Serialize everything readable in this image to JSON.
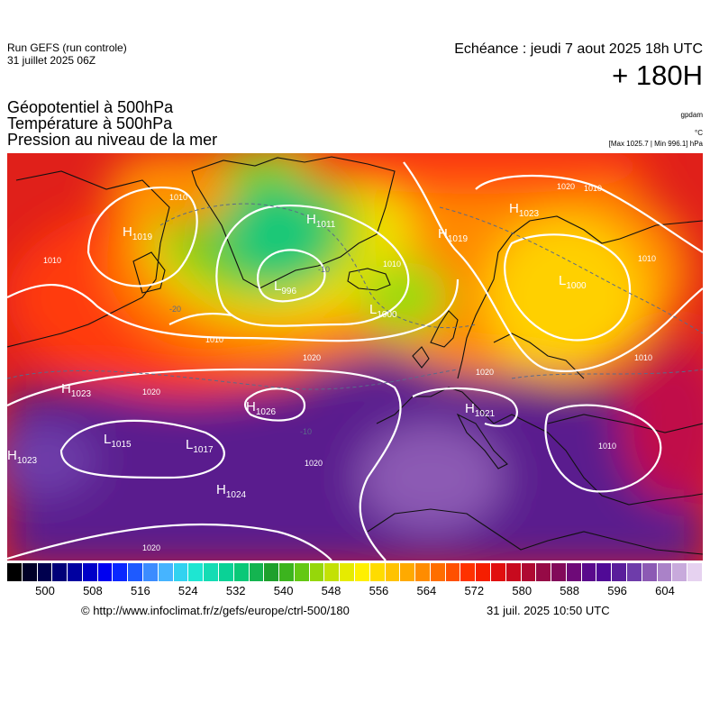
{
  "header": {
    "run_line1": "Run GEFS (run controle)",
    "run_line2": "31 juillet 2025 06Z",
    "valid_time": "Echéance : jeudi 7 aout 2025 18h UTC",
    "lead_time": "+ 180H"
  },
  "fields": {
    "line1": "Géopotentiel à 500hPa",
    "line2": "Température à 500hPa",
    "line3": "Pression au niveau de la mer"
  },
  "units": {
    "geopotential": "gpdam",
    "temperature": "°C",
    "pressure_range": "[Max 1025.7 | Min 996.1] hPa"
  },
  "map": {
    "pressure_centers": [
      {
        "type": "H",
        "value": "1019"
      },
      {
        "type": "H",
        "value": "1011"
      },
      {
        "type": "H",
        "value": "1023"
      },
      {
        "type": "H",
        "value": "1019"
      },
      {
        "type": "L",
        "value": "996"
      },
      {
        "type": "L",
        "value": "1000"
      },
      {
        "type": "L",
        "value": "1000"
      },
      {
        "type": "H",
        "value": "1023"
      },
      {
        "type": "H",
        "value": "1026"
      },
      {
        "type": "H",
        "value": "1021"
      },
      {
        "type": "L",
        "value": "1015"
      },
      {
        "type": "L",
        "value": "1017"
      },
      {
        "type": "H",
        "value": "1023"
      },
      {
        "type": "H",
        "value": "1024"
      }
    ],
    "isobar_labels": [
      "1010",
      "1010",
      "1010",
      "1010",
      "1010",
      "1010",
      "1020",
      "1020",
      "1020",
      "1020",
      "1020",
      "1010",
      "1010",
      "1020"
    ],
    "temp_labels": [
      "-20",
      "-10",
      "-10"
    ]
  },
  "colorscale": {
    "ticks": [
      "500",
      "508",
      "516",
      "524",
      "532",
      "540",
      "548",
      "556",
      "564",
      "572",
      "580",
      "588",
      "596",
      "604"
    ],
    "colors": [
      "#000000",
      "#000028",
      "#00004e",
      "#000078",
      "#0000a0",
      "#0000c8",
      "#0000f0",
      "#0a28ff",
      "#1e5aff",
      "#3c8cff",
      "#46b4ff",
      "#32d2f0",
      "#1ee6d2",
      "#14dcb4",
      "#0ad296",
      "#0ac878",
      "#14b450",
      "#1ea02d",
      "#3cb41e",
      "#64c814",
      "#96d70a",
      "#c3e105",
      "#e6eb00",
      "#fff000",
      "#ffdc00",
      "#ffc300",
      "#ffaa00",
      "#ff8c00",
      "#ff6e00",
      "#ff5000",
      "#ff3200",
      "#f51e00",
      "#e10f0f",
      "#c80a1e",
      "#af0a32",
      "#960a46",
      "#820a5a",
      "#6e0a78",
      "#5a0a8c",
      "#500a96",
      "#5a1e9b",
      "#6e3caa",
      "#8c5ab4",
      "#aa82c8",
      "#c8aadc",
      "#e6d2f0"
    ]
  },
  "footer": {
    "credit": "© http://www.infoclimat.fr/z/gefs/europe/ctrl-500/180",
    "generated": "31 juil. 2025 10:50 UTC"
  }
}
